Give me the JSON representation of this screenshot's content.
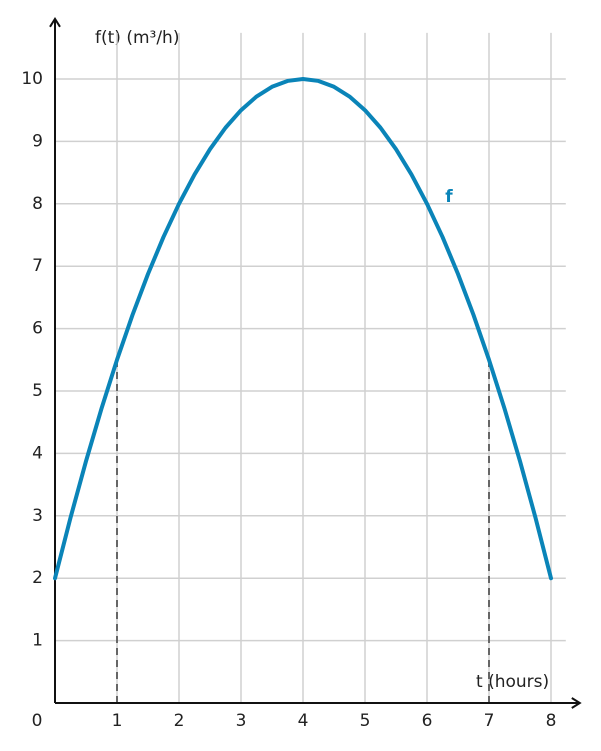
{
  "chart_data": {
    "type": "line",
    "y_axis_label": "f(t) (m³/h)",
    "x_axis_label": "t (hours)",
    "x": [
      0,
      0.25,
      0.5,
      0.75,
      1,
      1.25,
      1.5,
      1.75,
      2,
      2.25,
      2.5,
      2.75,
      3,
      3.25,
      3.5,
      3.75,
      4,
      4.25,
      4.5,
      4.75,
      5,
      5.25,
      5.5,
      5.75,
      6,
      6.25,
      6.5,
      6.75,
      7,
      7.25,
      7.5,
      7.75,
      8
    ],
    "series": [
      {
        "name": "f",
        "color": "#0a84b8",
        "values": [
          2,
          2.96875,
          3.875,
          4.71875,
          5.5,
          6.21875,
          6.875,
          7.46875,
          8,
          8.46875,
          8.875,
          9.21875,
          9.5,
          9.71875,
          9.875,
          9.96875,
          10,
          9.96875,
          9.875,
          9.71875,
          9.5,
          9.21875,
          8.875,
          8.46875,
          8,
          7.46875,
          6.875,
          6.21875,
          5.5,
          4.71875,
          3.875,
          2.96875,
          2
        ]
      }
    ],
    "reference_lines": [
      {
        "x": 1,
        "y": 5.5
      },
      {
        "x": 7,
        "y": 5.5
      }
    ],
    "xlim": [
      0,
      8.4
    ],
    "ylim": [
      0,
      10.9
    ],
    "xticks": [
      0,
      1,
      2,
      3,
      4,
      5,
      6,
      7,
      8
    ],
    "yticks": [
      1,
      2,
      3,
      4,
      5,
      6,
      7,
      8,
      9,
      10
    ],
    "grid": true
  }
}
